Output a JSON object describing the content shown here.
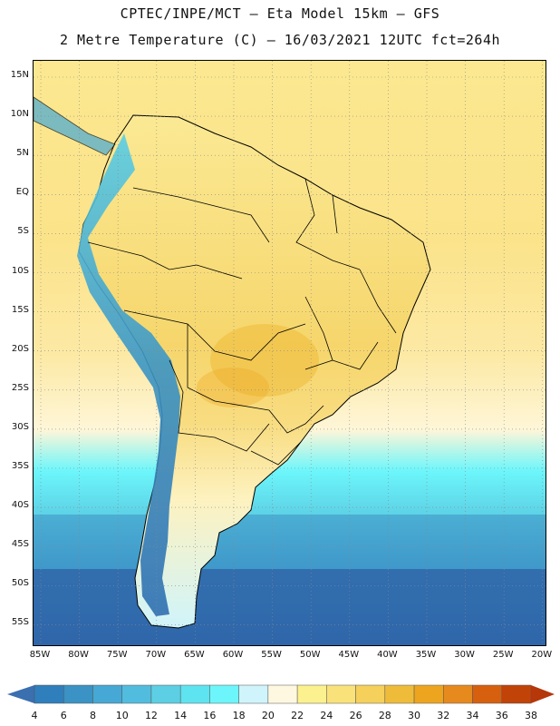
{
  "header": {
    "line1": "CPTEC/INPE/MCT –  Eta Model 15km – GFS",
    "line2": "2 Metre Temperature (C) – 16/03/2021 12UTC fct=264h"
  },
  "map": {
    "lat_labels": [
      "15N",
      "10N",
      "5N",
      "EQ",
      "5S",
      "10S",
      "15S",
      "20S",
      "25S",
      "30S",
      "35S",
      "40S",
      "45S",
      "50S",
      "55S"
    ],
    "lon_labels": [
      "85W",
      "80W",
      "75W",
      "70W",
      "65W",
      "60W",
      "55W",
      "50W",
      "45W",
      "40W",
      "35W",
      "30W",
      "25W",
      "20W"
    ]
  },
  "legend": {
    "ticks": [
      "4",
      "6",
      "8",
      "10",
      "12",
      "14",
      "16",
      "18",
      "20",
      "22",
      "24",
      "26",
      "28",
      "30",
      "32",
      "34",
      "36",
      "38"
    ],
    "colors": [
      "#3a6fb0",
      "#2f7fbd",
      "#3a93c4",
      "#46a8d4",
      "#52bcdf",
      "#5ccfe4",
      "#5ee3f0",
      "#6cf6fb",
      "#d0f4fb",
      "#fff8e0",
      "#fbf18e",
      "#f9e27a",
      "#f5d05a",
      "#efbc3a",
      "#eda51f",
      "#e68a1e",
      "#d7600e",
      "#c24308",
      "#b5370a"
    ]
  }
}
